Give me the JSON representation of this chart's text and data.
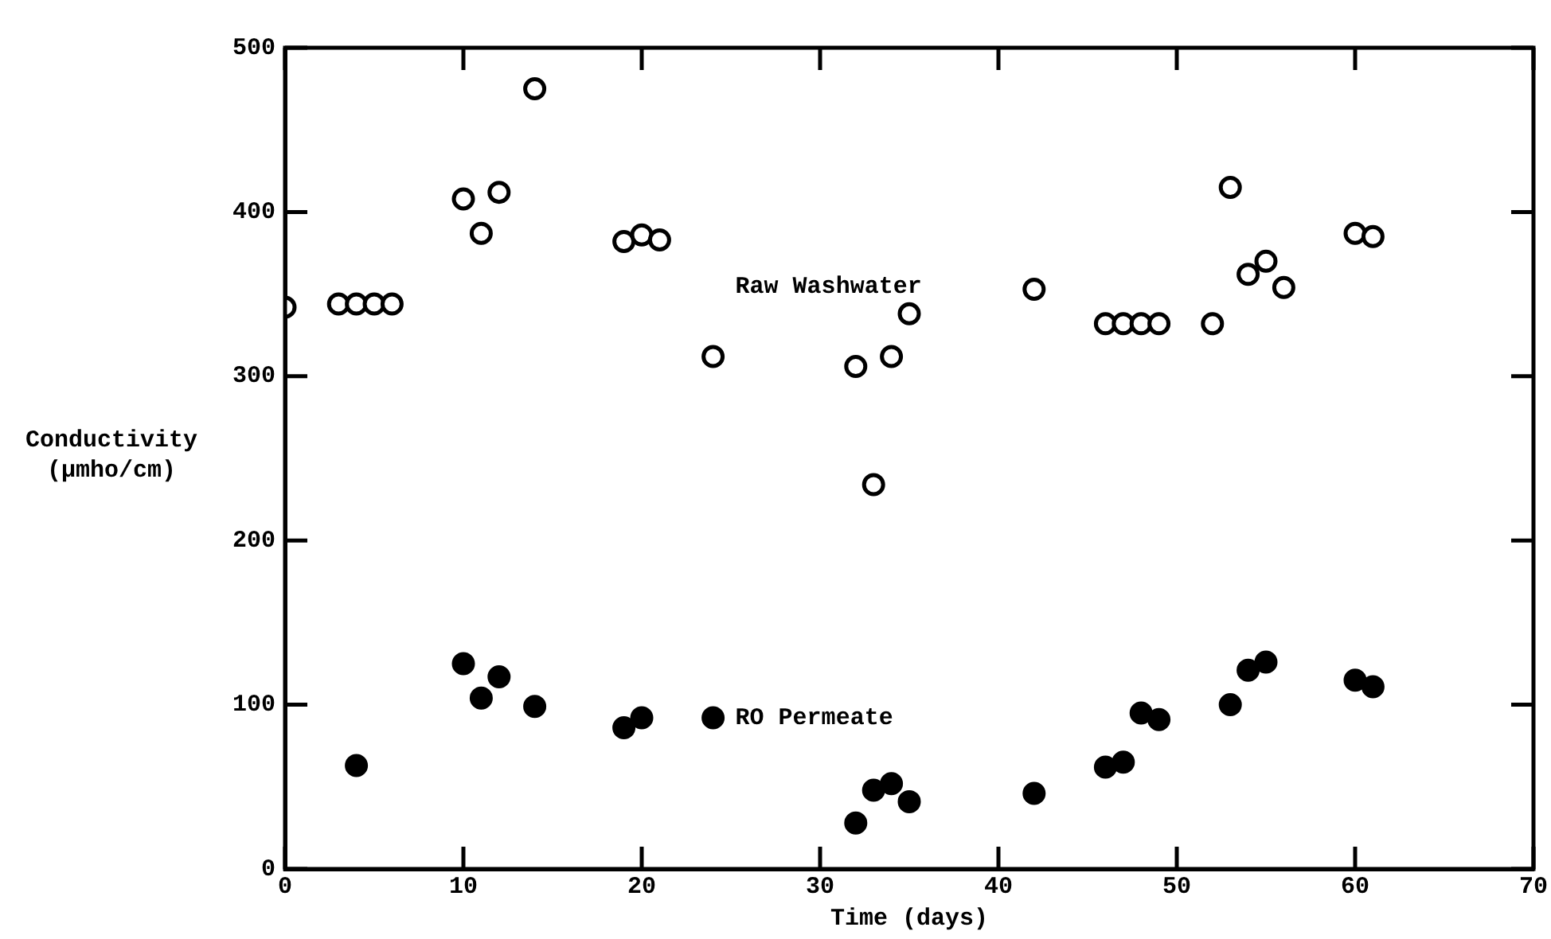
{
  "chart_data": {
    "type": "scatter",
    "xlabel": "Time (days)",
    "ylabel": "Conductivity\n(μmho/cm)",
    "xlim": [
      0,
      70
    ],
    "xticks": [
      0,
      10,
      20,
      30,
      40,
      50,
      60,
      70
    ],
    "ylim": [
      0,
      500
    ],
    "yticks": [
      0,
      100,
      200,
      300,
      400,
      500
    ],
    "grid": false,
    "legend": false,
    "marker": "circle",
    "series": [
      {
        "name": "Raw Washwater",
        "color": "#ffffff",
        "x": [
          0,
          3,
          4,
          5,
          6,
          10,
          11,
          12,
          14,
          19,
          20,
          21,
          24,
          32,
          33,
          34,
          35,
          42,
          46,
          47,
          48,
          49,
          52,
          53,
          54,
          55,
          56,
          60,
          61
        ],
        "values": [
          342,
          344,
          344,
          344,
          344,
          408,
          387,
          412,
          475,
          382,
          386,
          383,
          312,
          306,
          234,
          312,
          338,
          353,
          332,
          332,
          332,
          332,
          332,
          415,
          362,
          370,
          354,
          387,
          385
        ]
      },
      {
        "name": "RO Permeate",
        "color": "#000000",
        "x": [
          4,
          10,
          11,
          12,
          14,
          19,
          20,
          24,
          32,
          33,
          34,
          35,
          42,
          46,
          47,
          48,
          49,
          53,
          54,
          55,
          60,
          61
        ],
        "values": [
          63,
          125,
          104,
          117,
          99,
          86,
          92,
          92,
          28,
          48,
          52,
          41,
          46,
          62,
          65,
          95,
          91,
          100,
          121,
          126,
          115,
          111
        ]
      }
    ]
  }
}
